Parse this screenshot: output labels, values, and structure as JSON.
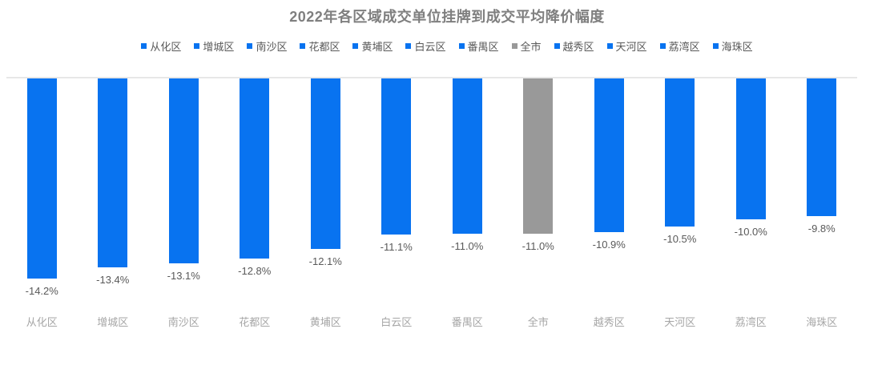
{
  "chart_data": {
    "type": "bar",
    "title": "2022年各区域成交单位挂牌到成交平均降价幅度",
    "categories": [
      "从化区",
      "增城区",
      "南沙区",
      "花都区",
      "黄埔区",
      "白云区",
      "番禺区",
      "全市",
      "越秀区",
      "天河区",
      "荔湾区",
      "海珠区"
    ],
    "values": [
      -14.2,
      -13.4,
      -13.1,
      -12.8,
      -12.1,
      -11.1,
      -11.0,
      -11.0,
      -10.9,
      -10.5,
      -10.0,
      -9.8
    ],
    "data_labels": [
      "-14.2%",
      "-13.4%",
      "-13.1%",
      "-12.8%",
      "-12.1%",
      "-11.1%",
      "-11.0%",
      "-11.0%",
      "-10.9%",
      "-10.5%",
      "-10.0%",
      "-9.8%"
    ],
    "legend_entries": [
      "从化区",
      "增城区",
      "南沙区",
      "花都区",
      "黄埔区",
      "白云区",
      "番禺区",
      "全市",
      "越秀区",
      "天河区",
      "荔湾区",
      "海珠区"
    ],
    "legend_position": "top",
    "highlight_category": "全市",
    "ylim": [
      -15,
      0
    ],
    "grid": false,
    "xlabel": "",
    "ylabel": "",
    "colors": {
      "bar": "#0873f0",
      "highlight_bar": "#999999",
      "title_text": "#7f7f7f",
      "data_label_text": "#595959",
      "axis_label_text": "#a6a6a6",
      "legend_text": "#595959",
      "axis_line": "#e7e7e7"
    }
  }
}
